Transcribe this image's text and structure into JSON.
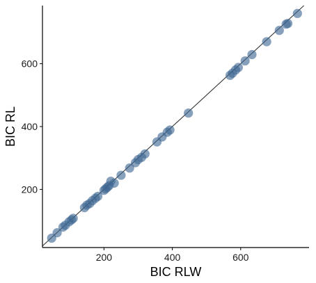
{
  "chart_data": {
    "type": "scatter",
    "xlabel": "BIC RLW",
    "ylabel": "BIC RL",
    "xlim": [
      20,
      800
    ],
    "ylim": [
      15,
      785
    ],
    "x_ticks": [
      200,
      400,
      600
    ],
    "y_ticks": [
      200,
      400,
      600
    ],
    "grid": false,
    "reference_line": "y = x",
    "point_color": "#3d6591",
    "points": [
      {
        "x": 47,
        "y": 45
      },
      {
        "x": 63,
        "y": 62
      },
      {
        "x": 80,
        "y": 80
      },
      {
        "x": 87,
        "y": 86
      },
      {
        "x": 98,
        "y": 97
      },
      {
        "x": 105,
        "y": 103
      },
      {
        "x": 110,
        "y": 108
      },
      {
        "x": 143,
        "y": 142
      },
      {
        "x": 150,
        "y": 150
      },
      {
        "x": 158,
        "y": 155
      },
      {
        "x": 166,
        "y": 164
      },
      {
        "x": 175,
        "y": 172
      },
      {
        "x": 182,
        "y": 178
      },
      {
        "x": 200,
        "y": 197
      },
      {
        "x": 205,
        "y": 202
      },
      {
        "x": 210,
        "y": 207
      },
      {
        "x": 215,
        "y": 212
      },
      {
        "x": 220,
        "y": 226
      },
      {
        "x": 230,
        "y": 220
      },
      {
        "x": 250,
        "y": 245
      },
      {
        "x": 275,
        "y": 268
      },
      {
        "x": 292,
        "y": 285
      },
      {
        "x": 300,
        "y": 295
      },
      {
        "x": 310,
        "y": 302
      },
      {
        "x": 320,
        "y": 313
      },
      {
        "x": 355,
        "y": 351
      },
      {
        "x": 370,
        "y": 367
      },
      {
        "x": 385,
        "y": 382
      },
      {
        "x": 393,
        "y": 389
      },
      {
        "x": 447,
        "y": 443
      },
      {
        "x": 569,
        "y": 563
      },
      {
        "x": 576,
        "y": 570
      },
      {
        "x": 585,
        "y": 580
      },
      {
        "x": 593,
        "y": 588
      },
      {
        "x": 613,
        "y": 609
      },
      {
        "x": 633,
        "y": 629
      },
      {
        "x": 676,
        "y": 670
      },
      {
        "x": 713,
        "y": 706
      },
      {
        "x": 733,
        "y": 726
      },
      {
        "x": 738,
        "y": 728
      },
      {
        "x": 766,
        "y": 760
      }
    ]
  }
}
